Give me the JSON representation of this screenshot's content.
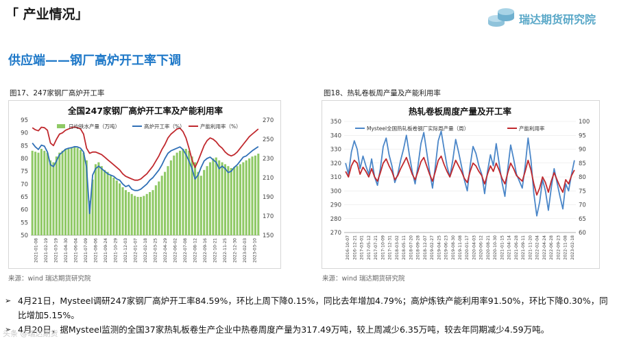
{
  "header": {
    "title": "「 产业情况」",
    "brand": "瑞达期货研究院"
  },
  "subtitle": "供应端——钢厂高炉开工率下调",
  "figures": [
    {
      "caption": "图17、247家钢厂高炉开工率",
      "source": "来源：wind    瑞达期货研究院"
    },
    {
      "caption": "图18、热轧卷板周产量及产能利用率",
      "source": "来源：wind    瑞达期货研究院"
    }
  ],
  "chart_data": [
    {
      "type": "bar+line",
      "title": "全国247家钢厂高炉开工率及产能利用率",
      "legend": [
        "日均铁水产量（万吨）",
        "高炉开工率（%）",
        "产能利用率（%）"
      ],
      "legend_placement": "top",
      "y_left_ticks": [
        50,
        55,
        60,
        65,
        70,
        75,
        80,
        85,
        90,
        95
      ],
      "y_right_ticks": [
        150,
        170,
        190,
        210,
        230,
        250,
        270
      ],
      "ylim_left": [
        50,
        95
      ],
      "ylim_right": [
        150,
        270
      ],
      "x_ticks": [
        "2021-01-08",
        "2021-02-19",
        "2021-03-19",
        "2021-04-30",
        "2021-06-04",
        "2021-07-09",
        "2021-08-06",
        "2021-09-24",
        "2021-10-29",
        "2021-12-03",
        "2022-01-07",
        "2022-02-18",
        "2022-03-25",
        "2022-04-29",
        "2022-06-02",
        "2022-07-08",
        "2022-08-12",
        "2022-09-16",
        "2022-10-21",
        "2022-11-25",
        "2022-12-30",
        "2023-02-03",
        "2023-03-10"
      ],
      "series": [
        {
          "name": "日均铁水产量（万吨）",
          "color": "#8fc965",
          "values": [
            238,
            237,
            236,
            240,
            238,
            236,
            228,
            226,
            232,
            236,
            238,
            240,
            240,
            241,
            242,
            241,
            239,
            236,
            228,
            186,
            208,
            224,
            226,
            222,
            218,
            216,
            212,
            210,
            207,
            204,
            200,
            197,
            195,
            193,
            191,
            190,
            190,
            191,
            193,
            195,
            197,
            202,
            206,
            212,
            216,
            222,
            228,
            233,
            236,
            238,
            240,
            240,
            238,
            232,
            226,
            216,
            212,
            218,
            222,
            226,
            230,
            231,
            228,
            226,
            224,
            222,
            220,
            221,
            222,
            224,
            226,
            228,
            230,
            232,
            233,
            235
          ]
        },
        {
          "name": "高炉开工率（%）",
          "color": "#2f6fb6",
          "values": [
            86.0,
            84.5,
            83.5,
            85.2,
            84.8,
            82.5,
            77.5,
            76.8,
            79.0,
            81.5,
            82.5,
            83.6,
            84.0,
            84.2,
            84.6,
            84.5,
            84.0,
            82.5,
            76.5,
            58.5,
            73.5,
            76.0,
            77.0,
            76.0,
            75.0,
            74.0,
            73.5,
            73.0,
            72.0,
            71.5,
            70.0,
            69.0,
            69.5,
            68.0,
            67.5,
            67.5,
            68.0,
            69.0,
            70.0,
            71.5,
            72.5,
            74.0,
            75.5,
            77.5,
            80.0,
            82.0,
            83.0,
            83.5,
            84.0,
            84.5,
            83.5,
            81.5,
            79.0,
            76.0,
            72.0,
            73.5,
            76.5,
            79.0,
            80.0,
            80.5,
            79.5,
            78.5,
            76.0,
            77.0,
            76.0,
            74.5,
            75.0,
            76.5,
            77.5,
            79.0,
            80.5,
            81.0,
            82.0,
            83.0,
            83.8,
            84.6
          ]
        },
        {
          "name": "产能利用率（%）",
          "color": "#c0282d",
          "values": [
            92.0,
            91.2,
            90.8,
            92.2,
            92.0,
            91.0,
            86.0,
            85.0,
            87.5,
            89.5,
            90.0,
            91.0,
            91.5,
            92.0,
            92.3,
            92.0,
            91.5,
            89.5,
            84.0,
            82.0,
            82.5,
            82.5,
            82.0,
            81.5,
            80.5,
            79.5,
            78.5,
            77.5,
            76.5,
            75.5,
            74.0,
            73.0,
            72.5,
            72.0,
            71.5,
            71.5,
            72.0,
            73.0,
            74.0,
            75.5,
            77.0,
            79.0,
            81.0,
            83.5,
            85.5,
            88.0,
            89.5,
            90.5,
            91.5,
            91.8,
            90.5,
            88.0,
            84.0,
            79.5,
            76.5,
            79.0,
            82.0,
            85.0,
            87.0,
            88.0,
            87.5,
            86.5,
            85.0,
            84.0,
            82.5,
            81.5,
            81.0,
            81.5,
            82.5,
            84.0,
            85.5,
            87.0,
            88.5,
            89.5,
            90.5,
            91.5
          ]
        }
      ]
    },
    {
      "type": "line",
      "title": "热轧卷板周度产量及开工率",
      "legend": [
        "Mysteel全国热轧板卷钢厂实际周产量（周）",
        "产能利用率"
      ],
      "legend_placement": "top",
      "y_left_ticks": [
        270,
        280,
        290,
        300,
        310,
        320,
        330,
        340,
        350
      ],
      "y_right_ticks": [
        60,
        65,
        70,
        75,
        80,
        85,
        90,
        95,
        100
      ],
      "ylim_left": [
        270,
        350
      ],
      "ylim_right": [
        60,
        100
      ],
      "x_ticks": [
        "2016-10-07",
        "2016-12-21",
        "2017-03-01",
        "2017-05-12",
        "2017-07-21",
        "2017-10-09",
        "2017-12-31",
        "2018-03-02",
        "2018-05-11",
        "2018-07-20",
        "2018-09-28",
        "2018-12-07",
        "2019-02-27",
        "2019-04-25",
        "2019-06-23",
        "2019-08-30",
        "2019-11-08",
        "2020-01-17",
        "2020-04-03",
        "2020-06-12",
        "2020-08-21",
        "2020-10-30",
        "2021-01-15",
        "2021-04-14",
        "2021-06-28",
        "2021-09-11",
        "2021-11-20",
        "2022-02-04",
        "2022-04-24",
        "2022-06-28",
        "2022-09-23",
        "2022-11-08",
        "2023-02-18"
      ],
      "series": [
        {
          "name": "Mysteel全国热轧板卷钢厂实际周产量（周）",
          "color": "#4a86c8",
          "values": [
            320,
            312,
            328,
            336,
            330,
            316,
            325,
            318,
            312,
            323,
            310,
            304,
            316,
            332,
            338,
            326,
            318,
            306,
            312,
            322,
            330,
            340,
            326,
            314,
            305,
            318,
            334,
            342,
            328,
            314,
            302,
            318,
            336,
            343,
            330,
            318,
            310,
            322,
            337,
            328,
            318,
            308,
            300,
            318,
            332,
            327,
            318,
            312,
            298,
            314,
            326,
            318,
            334,
            320,
            306,
            296,
            316,
            333,
            323,
            312,
            307,
            302,
            318,
            338,
            322,
            298,
            282,
            292,
            308,
            300,
            286,
            302,
            316,
            306,
            296,
            287,
            305,
            300,
            312,
            322
          ]
        },
        {
          "name": "产能利用率",
          "color": "#c0282d",
          "values": [
            82.0,
            80.0,
            84.0,
            86.0,
            85.0,
            81.0,
            83.5,
            82.0,
            80.0,
            83.0,
            80.0,
            78.5,
            81.5,
            85.0,
            86.5,
            84.0,
            82.0,
            79.0,
            80.5,
            83.0,
            85.0,
            87.0,
            84.0,
            81.0,
            79.0,
            82.0,
            85.5,
            87.0,
            84.0,
            81.0,
            78.5,
            82.0,
            86.0,
            87.5,
            84.5,
            82.0,
            80.0,
            83.0,
            86.0,
            84.0,
            82.0,
            79.5,
            78.0,
            82.0,
            85.0,
            84.0,
            82.0,
            80.5,
            77.5,
            81.0,
            84.0,
            82.0,
            85.0,
            82.5,
            79.5,
            77.5,
            81.5,
            85.0,
            83.0,
            80.5,
            79.5,
            78.5,
            82.0,
            86.0,
            82.5,
            77.5,
            73.5,
            76.0,
            80.0,
            78.0,
            74.5,
            78.5,
            81.5,
            79.0,
            76.5,
            74.5,
            79.0,
            77.5,
            80.5,
            82.5
          ]
        }
      ]
    }
  ],
  "bullets": [
    "4月21日，Mysteel调研247家钢厂高炉开工率84.59%，环比上周下降0.15%，同比去年增加4.79%；高炉炼铁产能利用率91.50%，环比下降0.30%，同比增加5.15%。",
    "4月20日，据Mysteel监测的全国37家热轧板卷生产企业中热卷周度产量为317.49万吨，较上周减少6.35万吨，较去年同期减少4.59万吨。"
  ],
  "watermark": "头条 @瑞达期货",
  "colors": {
    "accent": "#1e78c8",
    "brand": "#5aa8c8"
  }
}
